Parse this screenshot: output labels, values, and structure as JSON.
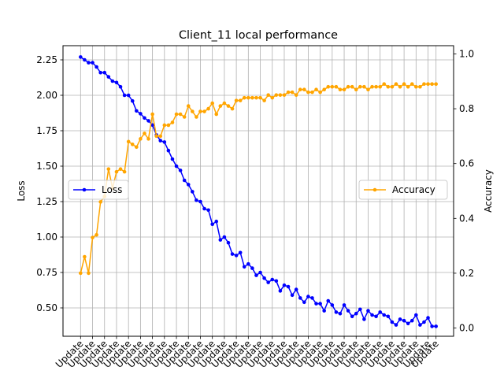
{
  "chart_data": {
    "type": "line",
    "title": "Client_11 local performance",
    "ylabel_left": "Loss",
    "ylabel_right": "Accuracy",
    "x_tick_label": "Update",
    "x_tick_count": 31,
    "grid": true,
    "ylim_left": [
      0.3,
      2.35
    ],
    "ylim_right": [
      -0.03,
      1.03
    ],
    "yticks_left": [
      0.5,
      0.75,
      1.0,
      1.25,
      1.5,
      1.75,
      2.0,
      2.25
    ],
    "yticks_right": [
      0.0,
      0.2,
      0.4,
      0.6,
      0.8,
      1.0
    ],
    "ytick_labels_left": [
      "0.50",
      "0.75",
      "1.00",
      "1.25",
      "1.50",
      "1.75",
      "2.00",
      "2.25"
    ],
    "ytick_labels_right": [
      "0.0",
      "0.2",
      "0.4",
      "0.6",
      "0.8",
      "1.0"
    ],
    "legends": [
      {
        "label": "Loss",
        "color": "#0000ff",
        "position": "center-left"
      },
      {
        "label": "Accuracy",
        "color": "#ffa500",
        "position": "center-right"
      }
    ],
    "series": [
      {
        "name": "Loss",
        "axis": "left",
        "color": "#0000ff",
        "values": [
          2.27,
          2.25,
          2.23,
          2.23,
          2.2,
          2.16,
          2.16,
          2.13,
          2.1,
          2.09,
          2.06,
          2.0,
          2.0,
          1.96,
          1.89,
          1.87,
          1.84,
          1.82,
          1.79,
          1.72,
          1.68,
          1.67,
          1.61,
          1.55,
          1.5,
          1.47,
          1.4,
          1.37,
          1.32,
          1.26,
          1.25,
          1.2,
          1.19,
          1.09,
          1.11,
          0.98,
          1.0,
          0.96,
          0.88,
          0.87,
          0.89,
          0.79,
          0.81,
          0.78,
          0.73,
          0.75,
          0.71,
          0.68,
          0.7,
          0.69,
          0.62,
          0.66,
          0.65,
          0.59,
          0.63,
          0.57,
          0.54,
          0.58,
          0.57,
          0.53,
          0.53,
          0.48,
          0.55,
          0.52,
          0.47,
          0.46,
          0.52,
          0.48,
          0.44,
          0.46,
          0.49,
          0.42,
          0.48,
          0.45,
          0.44,
          0.47,
          0.45,
          0.44,
          0.4,
          0.38,
          0.42,
          0.41,
          0.39,
          0.41,
          0.45,
          0.38,
          0.4,
          0.43,
          0.37,
          0.37
        ]
      },
      {
        "name": "Accuracy",
        "axis": "right",
        "color": "#ffa500",
        "values": [
          0.2,
          0.26,
          0.2,
          0.33,
          0.34,
          0.46,
          0.48,
          0.58,
          0.51,
          0.57,
          0.58,
          0.57,
          0.68,
          0.67,
          0.66,
          0.69,
          0.71,
          0.69,
          0.78,
          0.7,
          0.7,
          0.74,
          0.74,
          0.75,
          0.78,
          0.78,
          0.77,
          0.81,
          0.79,
          0.77,
          0.79,
          0.79,
          0.8,
          0.82,
          0.78,
          0.81,
          0.82,
          0.81,
          0.8,
          0.83,
          0.83,
          0.84,
          0.84,
          0.84,
          0.84,
          0.84,
          0.83,
          0.85,
          0.84,
          0.85,
          0.85,
          0.85,
          0.86,
          0.86,
          0.85,
          0.87,
          0.87,
          0.86,
          0.86,
          0.87,
          0.86,
          0.87,
          0.88,
          0.88,
          0.88,
          0.87,
          0.87,
          0.88,
          0.88,
          0.87,
          0.88,
          0.88,
          0.87,
          0.88,
          0.88,
          0.88,
          0.89,
          0.88,
          0.88,
          0.89,
          0.88,
          0.89,
          0.88,
          0.89,
          0.88,
          0.88,
          0.89,
          0.89,
          0.89,
          0.89
        ]
      }
    ]
  }
}
